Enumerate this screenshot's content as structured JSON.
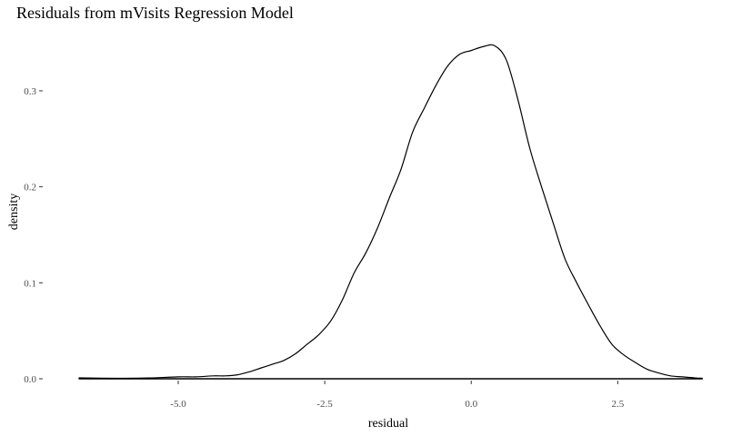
{
  "chart_data": {
    "type": "area",
    "title": "Residuals from mVisits Regression Model",
    "xlabel": "residual",
    "ylabel": "density",
    "xlim": [
      -6.8,
      4.0
    ],
    "ylim": [
      0,
      0.35
    ],
    "x_ticks": [
      -5.0,
      -2.5,
      0.0,
      2.5
    ],
    "x_tick_labels": [
      "-5.0",
      "-2.5",
      "0.0",
      "2.5"
    ],
    "y_ticks": [
      0.0,
      0.1,
      0.2,
      0.3
    ],
    "y_tick_labels": [
      "0.0",
      "0.1",
      "0.2",
      "0.3"
    ],
    "grid": false,
    "line_color": "#000000",
    "series": [
      {
        "x": [
          -6.7,
          -6.0,
          -5.5,
          -5.0,
          -4.7,
          -4.4,
          -4.2,
          -4.0,
          -3.8,
          -3.6,
          -3.4,
          -3.2,
          -3.0,
          -2.8,
          -2.6,
          -2.4,
          -2.2,
          -2.0,
          -1.8,
          -1.6,
          -1.4,
          -1.2,
          -1.0,
          -0.8,
          -0.6,
          -0.4,
          -0.2,
          0.0,
          0.2,
          0.4,
          0.6,
          0.8,
          1.0,
          1.2,
          1.4,
          1.6,
          1.8,
          2.0,
          2.2,
          2.4,
          2.6,
          2.8,
          3.0,
          3.2,
          3.4,
          3.6,
          3.8,
          3.95
        ],
        "y": [
          0.001,
          0.0005,
          0.0008,
          0.002,
          0.002,
          0.003,
          0.003,
          0.004,
          0.007,
          0.011,
          0.015,
          0.019,
          0.026,
          0.036,
          0.046,
          0.06,
          0.082,
          0.11,
          0.131,
          0.157,
          0.188,
          0.218,
          0.257,
          0.282,
          0.306,
          0.326,
          0.338,
          0.342,
          0.346,
          0.347,
          0.332,
          0.29,
          0.24,
          0.2,
          0.162,
          0.125,
          0.1,
          0.077,
          0.055,
          0.036,
          0.025,
          0.017,
          0.01,
          0.006,
          0.003,
          0.002,
          0.001,
          0.0005
        ]
      }
    ]
  }
}
